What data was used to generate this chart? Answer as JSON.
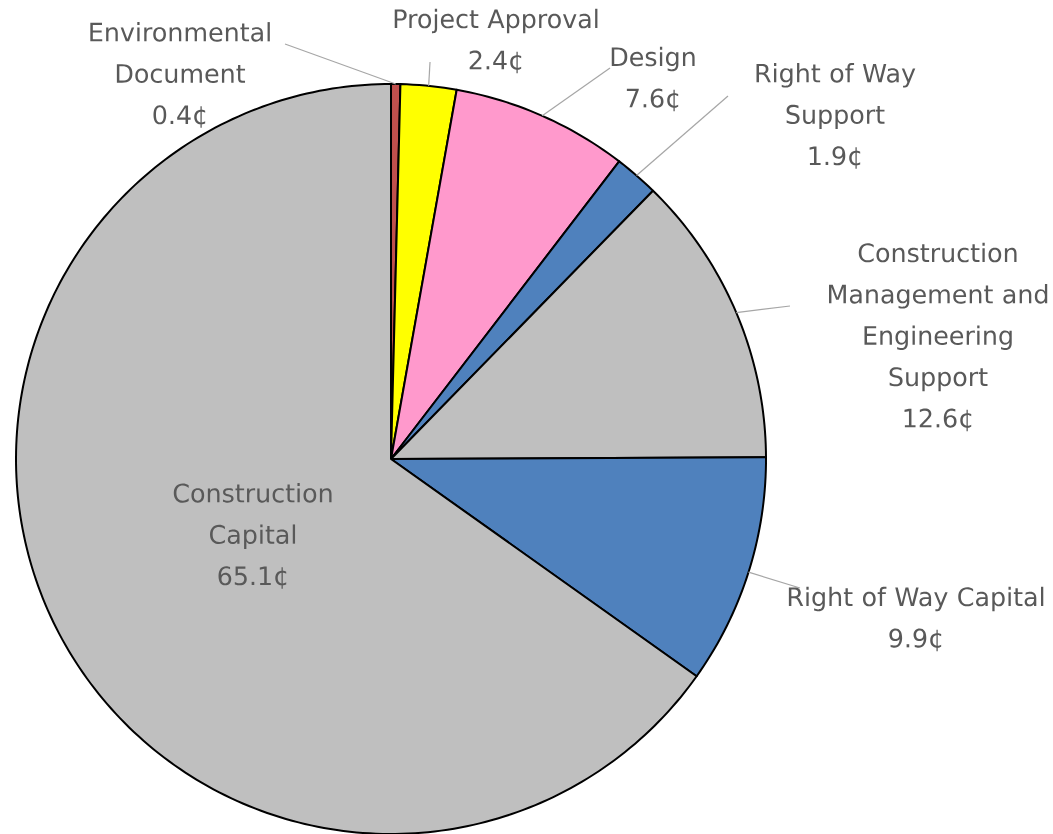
{
  "chart_data": {
    "type": "pie",
    "categories": [
      "Environmental Document",
      "Project Approval",
      "Design",
      "Right of Way Support",
      "Construction Management and Engineering Support",
      "Right of Way Capital",
      "Construction Capital"
    ],
    "values": [
      0.4,
      2.4,
      7.6,
      1.9,
      12.6,
      9.9,
      65.1
    ],
    "colors": [
      "#c0504d",
      "#ffff00",
      "#ff99cc",
      "#4f81bd",
      "#bfbfbf",
      "#4f81bd",
      "#bfbfbf"
    ],
    "value_labels": [
      "0.4¢",
      "2.4¢",
      "7.6¢",
      "1.9¢",
      "12.6¢",
      "9.9¢",
      "65.1¢"
    ]
  }
}
